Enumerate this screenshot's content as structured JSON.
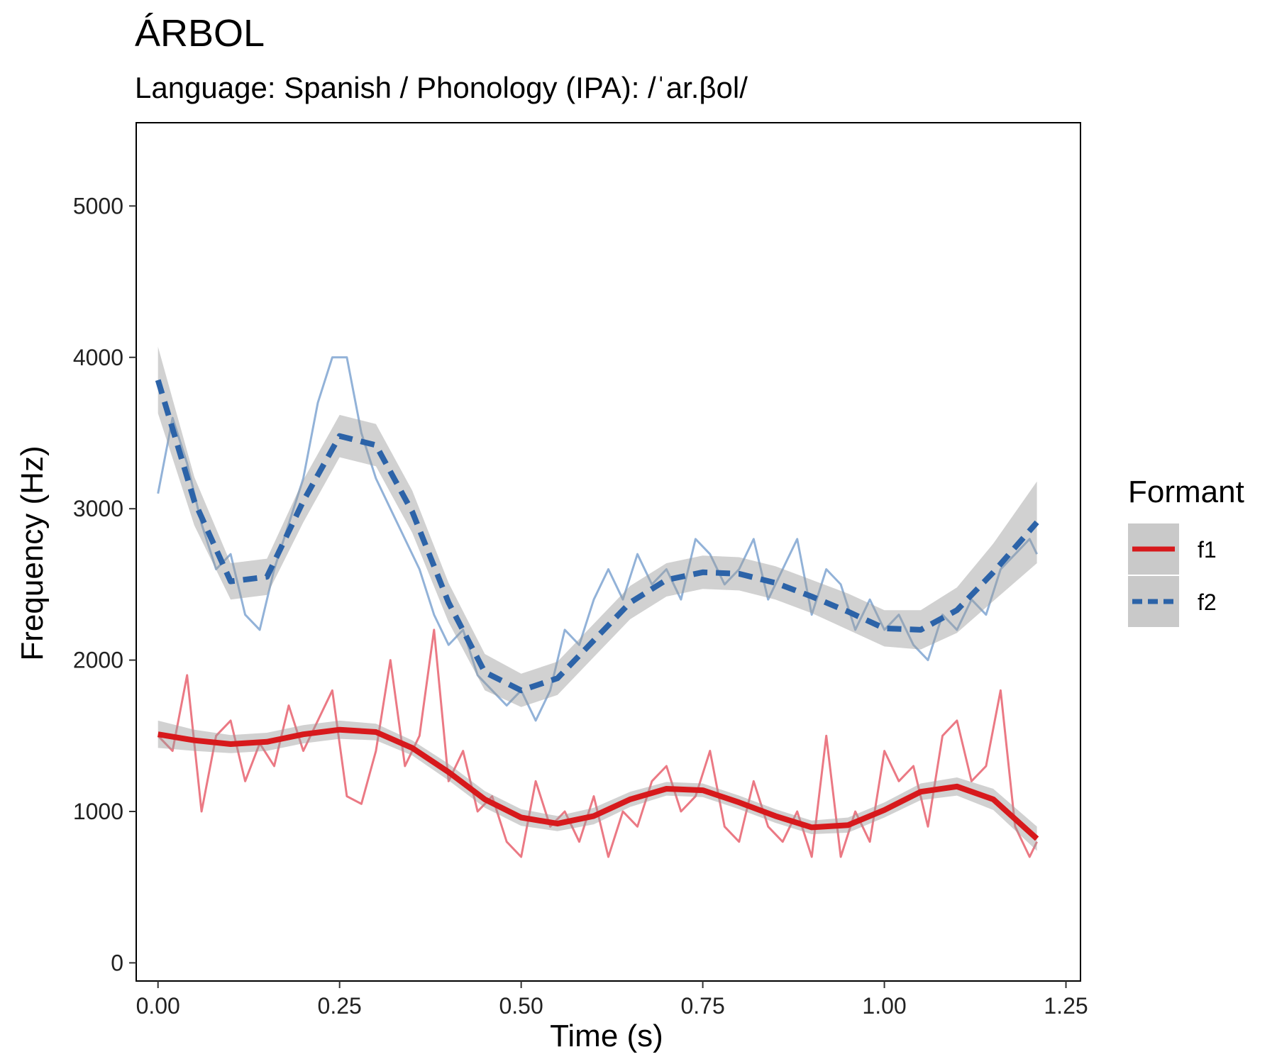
{
  "chart_data": {
    "type": "line",
    "title": "ÁRBOL",
    "subtitle": "Language: Spanish / Phonology (IPA): /ˈar.βol/",
    "xlabel": "Time (s)",
    "ylabel": "Frequency (Hz)",
    "xlim": [
      -0.03,
      1.27
    ],
    "ylim": [
      -120,
      5550
    ],
    "x_ticks": [
      0,
      0.25,
      0.5,
      0.75,
      1,
      1.25
    ],
    "x_tick_labels": [
      "0.00",
      "0.25",
      "0.50",
      "0.75",
      "1.00",
      "1.25"
    ],
    "y_ticks": [
      0,
      1000,
      2000,
      3000,
      4000,
      5000
    ],
    "y_tick_labels": [
      "0",
      "1000",
      "2000",
      "3000",
      "4000",
      "5000"
    ],
    "grid": false,
    "legend": {
      "title": "Formant",
      "position": "right",
      "entries": [
        {
          "label": "f1",
          "color": "#d7191c",
          "dash": "solid"
        },
        {
          "label": "f2",
          "color": "#2c63a8",
          "dash": "dashed"
        }
      ]
    },
    "series": [
      {
        "name": "f1",
        "kind": "raw",
        "color": "#e8616f",
        "x": [
          0.0,
          0.02,
          0.04,
          0.06,
          0.08,
          0.1,
          0.12,
          0.14,
          0.16,
          0.18,
          0.2,
          0.22,
          0.24,
          0.26,
          0.28,
          0.3,
          0.32,
          0.34,
          0.36,
          0.38,
          0.4,
          0.42,
          0.44,
          0.46,
          0.48,
          0.5,
          0.52,
          0.54,
          0.56,
          0.58,
          0.6,
          0.62,
          0.64,
          0.66,
          0.68,
          0.7,
          0.72,
          0.74,
          0.76,
          0.78,
          0.8,
          0.82,
          0.84,
          0.86,
          0.88,
          0.9,
          0.92,
          0.94,
          0.96,
          0.98,
          1.0,
          1.02,
          1.04,
          1.06,
          1.08,
          1.1,
          1.12,
          1.14,
          1.16,
          1.18,
          1.2,
          1.21
        ],
        "values": [
          1500,
          1400,
          1900,
          1000,
          1500,
          1600,
          1200,
          1450,
          1300,
          1700,
          1400,
          1600,
          1800,
          1100,
          1050,
          1400,
          2000,
          1300,
          1500,
          2200,
          1200,
          1400,
          1000,
          1100,
          800,
          700,
          1200,
          900,
          1000,
          800,
          1100,
          700,
          1000,
          900,
          1200,
          1300,
          1000,
          1100,
          1400,
          900,
          800,
          1200,
          900,
          800,
          1000,
          700,
          1500,
          700,
          1000,
          800,
          1400,
          1200,
          1300,
          900,
          1500,
          1600,
          1200,
          1300,
          1800,
          900,
          700,
          800
        ]
      },
      {
        "name": "f2",
        "kind": "raw",
        "color": "#7fa5d1",
        "x": [
          0.0,
          0.02,
          0.04,
          0.06,
          0.08,
          0.1,
          0.12,
          0.14,
          0.16,
          0.18,
          0.2,
          0.22,
          0.24,
          0.26,
          0.28,
          0.3,
          0.32,
          0.34,
          0.36,
          0.38,
          0.4,
          0.42,
          0.44,
          0.46,
          0.48,
          0.5,
          0.52,
          0.54,
          0.56,
          0.58,
          0.6,
          0.62,
          0.64,
          0.66,
          0.68,
          0.7,
          0.72,
          0.74,
          0.76,
          0.78,
          0.8,
          0.82,
          0.84,
          0.86,
          0.88,
          0.9,
          0.92,
          0.94,
          0.96,
          0.98,
          1.0,
          1.02,
          1.04,
          1.06,
          1.08,
          1.1,
          1.12,
          1.14,
          1.16,
          1.18,
          1.2,
          1.21
        ],
        "values": [
          3100,
          3600,
          3300,
          2900,
          2600,
          2700,
          2300,
          2200,
          2600,
          2900,
          3200,
          3700,
          4000,
          4000,
          3500,
          3200,
          3000,
          2800,
          2600,
          2300,
          2100,
          2200,
          1900,
          1800,
          1700,
          1800,
          1600,
          1800,
          2200,
          2100,
          2400,
          2600,
          2400,
          2700,
          2500,
          2600,
          2400,
          2800,
          2700,
          2500,
          2600,
          2800,
          2400,
          2600,
          2800,
          2300,
          2600,
          2500,
          2200,
          2400,
          2200,
          2300,
          2100,
          2000,
          2300,
          2200,
          2400,
          2300,
          2600,
          2700,
          2800,
          2700
        ]
      },
      {
        "name": "f1",
        "kind": "smooth",
        "color": "#d7191c",
        "x": [
          0.0,
          0.05,
          0.1,
          0.15,
          0.2,
          0.25,
          0.3,
          0.35,
          0.4,
          0.45,
          0.5,
          0.55,
          0.6,
          0.65,
          0.7,
          0.75,
          0.8,
          0.85,
          0.9,
          0.95,
          1.0,
          1.05,
          1.1,
          1.15,
          1.21
        ],
        "values": [
          1510,
          1470,
          1445,
          1460,
          1510,
          1540,
          1525,
          1420,
          1260,
          1080,
          960,
          920,
          970,
          1080,
          1150,
          1140,
          1060,
          970,
          895,
          910,
          1010,
          1130,
          1165,
          1080,
          820
        ],
        "ci_low": [
          1420,
          1400,
          1385,
          1400,
          1450,
          1480,
          1470,
          1370,
          1205,
          1025,
          905,
          870,
          915,
          1030,
          1105,
          1095,
          1015,
          925,
          850,
          860,
          960,
          1075,
          1105,
          1010,
          740
        ],
        "ci_high": [
          1600,
          1540,
          1505,
          1520,
          1570,
          1600,
          1580,
          1470,
          1315,
          1135,
          1015,
          970,
          1025,
          1130,
          1195,
          1185,
          1105,
          1015,
          940,
          960,
          1060,
          1185,
          1225,
          1150,
          900
        ]
      },
      {
        "name": "f2",
        "kind": "smooth",
        "color": "#2c63a8",
        "x": [
          0.0,
          0.05,
          0.1,
          0.15,
          0.2,
          0.25,
          0.3,
          0.35,
          0.4,
          0.45,
          0.5,
          0.55,
          0.6,
          0.65,
          0.7,
          0.75,
          0.8,
          0.85,
          0.9,
          0.95,
          1.0,
          1.05,
          1.1,
          1.15,
          1.21
        ],
        "values": [
          3850,
          3050,
          2520,
          2550,
          3050,
          3480,
          3420,
          2980,
          2380,
          1920,
          1800,
          1880,
          2130,
          2380,
          2530,
          2580,
          2570,
          2510,
          2420,
          2320,
          2210,
          2200,
          2330,
          2580,
          2910
        ],
        "ci_low": [
          3630,
          2890,
          2400,
          2430,
          2910,
          3340,
          3280,
          2840,
          2250,
          1800,
          1690,
          1770,
          2020,
          2270,
          2420,
          2470,
          2460,
          2400,
          2310,
          2200,
          2090,
          2070,
          2180,
          2390,
          2640
        ],
        "ci_high": [
          4070,
          3210,
          2640,
          2670,
          3190,
          3620,
          3560,
          3120,
          2510,
          2040,
          1910,
          1990,
          2240,
          2490,
          2640,
          2690,
          2680,
          2620,
          2530,
          2440,
          2330,
          2330,
          2480,
          2770,
          3180
        ]
      }
    ]
  }
}
